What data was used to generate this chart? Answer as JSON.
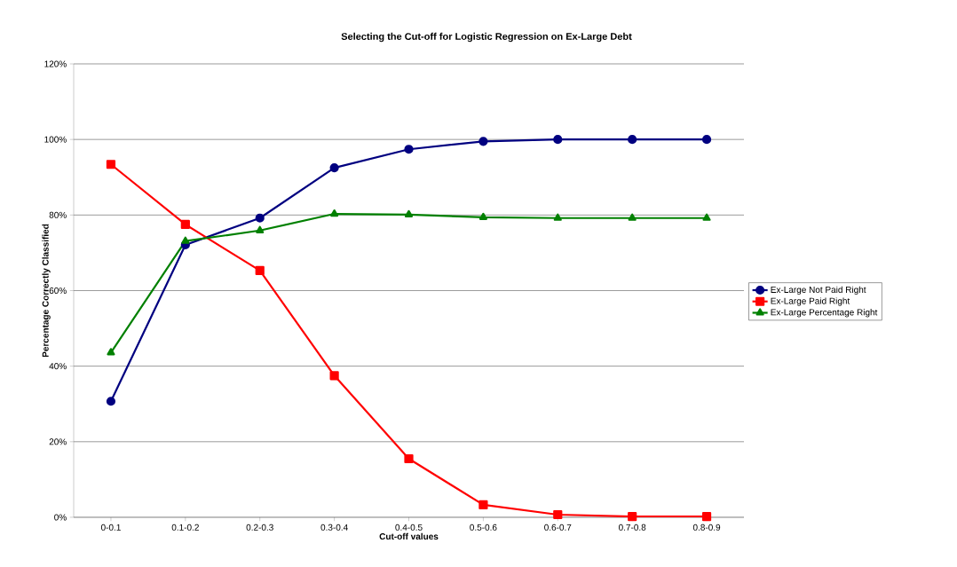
{
  "chart_data": {
    "type": "line",
    "title": "Selecting the Cut-off for Logistic Regression on Ex-Large Debt",
    "xlabel": "Cut-off values",
    "ylabel": "Percentage Correctly Classified",
    "categories": [
      "0-0.1",
      "0.1-0.2",
      "0.2-0.3",
      "0.3-0.4",
      "0.4-0.5",
      "0.5-0.6",
      "0.6-0.7",
      "0.7-0.8",
      "0.8-0.9"
    ],
    "series": [
      {
        "name": "Ex-Large Not Paid Right",
        "color": "#000080",
        "marker": "circle",
        "values": [
          30.7,
          72.1,
          79.2,
          92.5,
          97.4,
          99.5,
          100,
          100,
          100
        ]
      },
      {
        "name": "Ex-Large Paid Right",
        "color": "#ff0000",
        "marker": "square",
        "values": [
          93.4,
          77.5,
          65.3,
          37.5,
          15.5,
          3.3,
          0.7,
          0.2,
          0.2
        ]
      },
      {
        "name": "Ex-Large Percentage Right",
        "color": "#008000",
        "marker": "triangle",
        "values": [
          43.6,
          73.1,
          75.9,
          80.3,
          80.1,
          79.4,
          79.2,
          79.2,
          79.2
        ]
      }
    ],
    "ylim": [
      0,
      120
    ],
    "yticks": [
      {
        "value": 0,
        "label": "0%"
      },
      {
        "value": 20,
        "label": "20%"
      },
      {
        "value": 40,
        "label": "40%"
      },
      {
        "value": 60,
        "label": "60%"
      },
      {
        "value": 80,
        "label": "80%"
      },
      {
        "value": 100,
        "label": "100%"
      },
      {
        "value": 120,
        "label": "120%"
      }
    ],
    "grid": "y",
    "legend": "right",
    "line_style": "solid"
  }
}
